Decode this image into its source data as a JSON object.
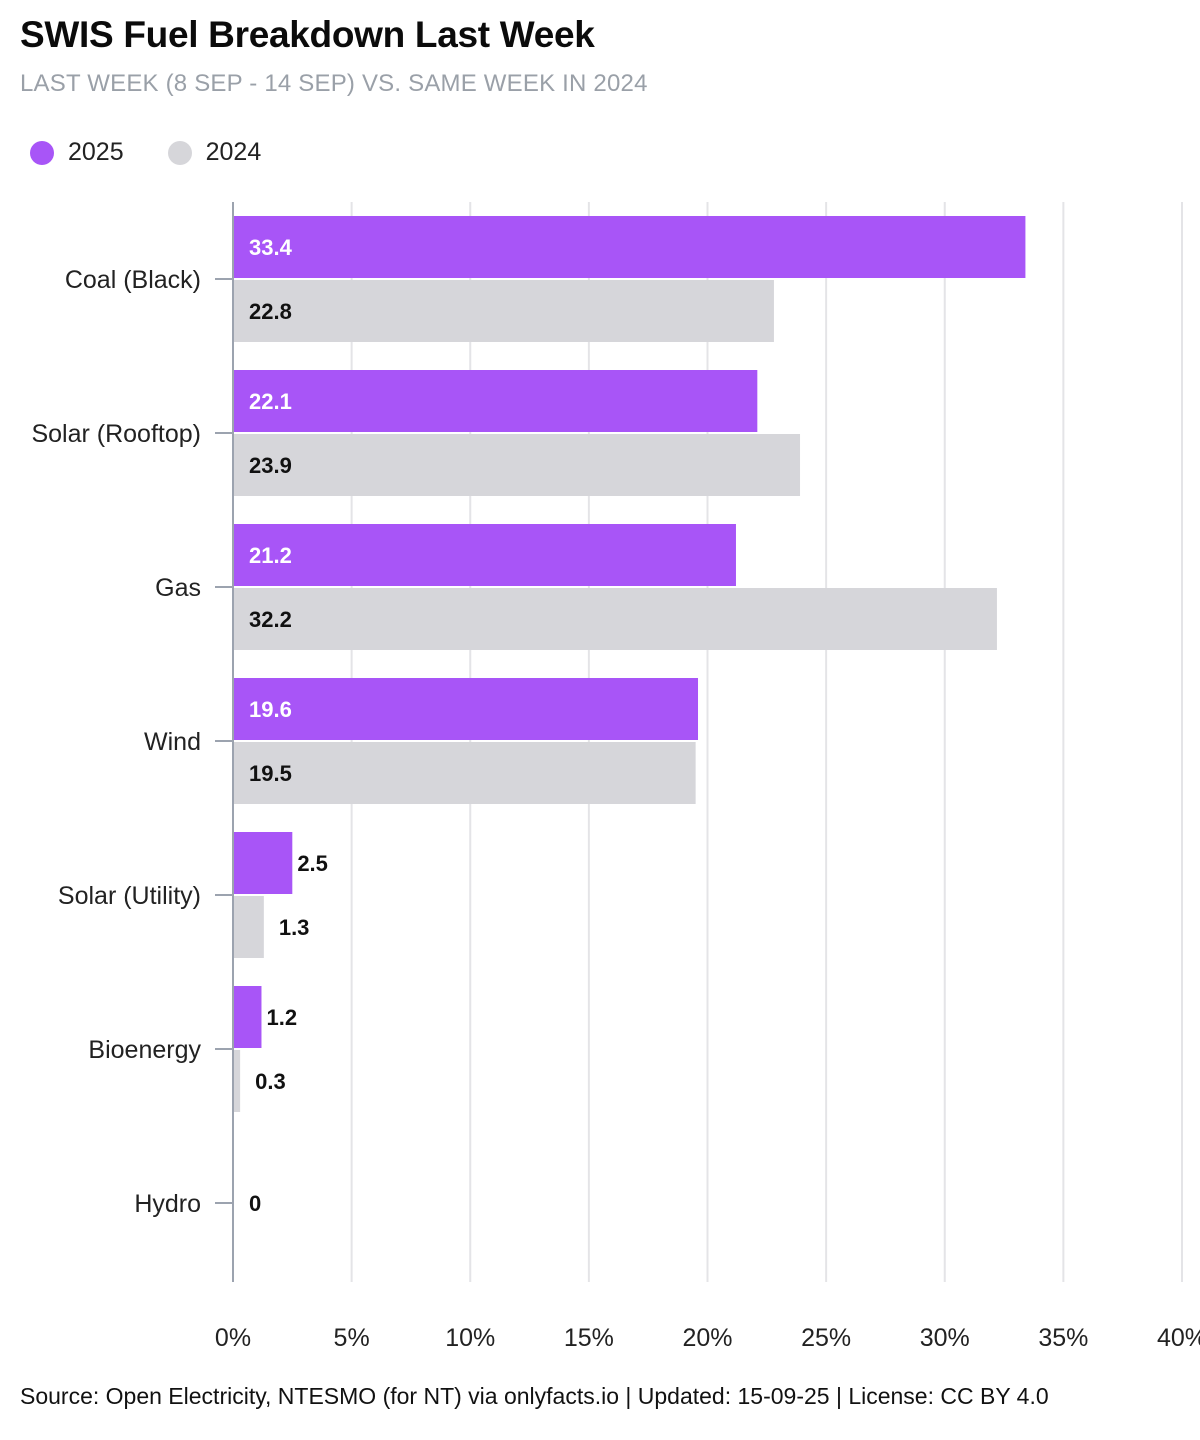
{
  "header": {
    "title": "SWIS Fuel Breakdown Last Week",
    "subtitle": "LAST WEEK (8 SEP - 14 SEP) VS. SAME WEEK IN 2024"
  },
  "colors": {
    "series_2025": "#a855f7",
    "series_2024": "#d6d6da",
    "grid": "#e4e4e7",
    "axis": "#9ca3af"
  },
  "chart_data": {
    "type": "bar",
    "orientation": "horizontal",
    "title": "SWIS Fuel Breakdown Last Week",
    "subtitle": "LAST WEEK (8 SEP - 14 SEP) VS. SAME WEEK IN 2024",
    "categories": [
      "Coal (Black)",
      "Solar (Rooftop)",
      "Gas",
      "Wind",
      "Solar (Utility)",
      "Bioenergy",
      "Hydro"
    ],
    "series": [
      {
        "name": "2025",
        "values": [
          33.4,
          22.1,
          21.2,
          19.6,
          2.5,
          1.2,
          0
        ]
      },
      {
        "name": "2024",
        "values": [
          22.8,
          23.9,
          32.2,
          19.5,
          1.3,
          0.3,
          0
        ]
      }
    ],
    "xlim": [
      0,
      40
    ],
    "xticks": [
      "0%",
      "5%",
      "10%",
      "15%",
      "20%",
      "25%",
      "30%",
      "35%",
      "40%"
    ],
    "data_labels": {
      "2025": [
        "33.4",
        "22.1",
        "21.2",
        "19.6",
        "2.5",
        "1.2",
        ""
      ],
      "2024": [
        "22.8",
        "23.9",
        "32.2",
        "19.5",
        "1.3",
        "0.3",
        ""
      ],
      "hydro_combined": "0"
    },
    "grid": true,
    "legend": "top-left"
  },
  "footer": {
    "source": "Source: Open Electricity, NTESMO (for NT) via onlyfacts.io | Updated: 15-09-25 | License: CC BY 4.0"
  }
}
